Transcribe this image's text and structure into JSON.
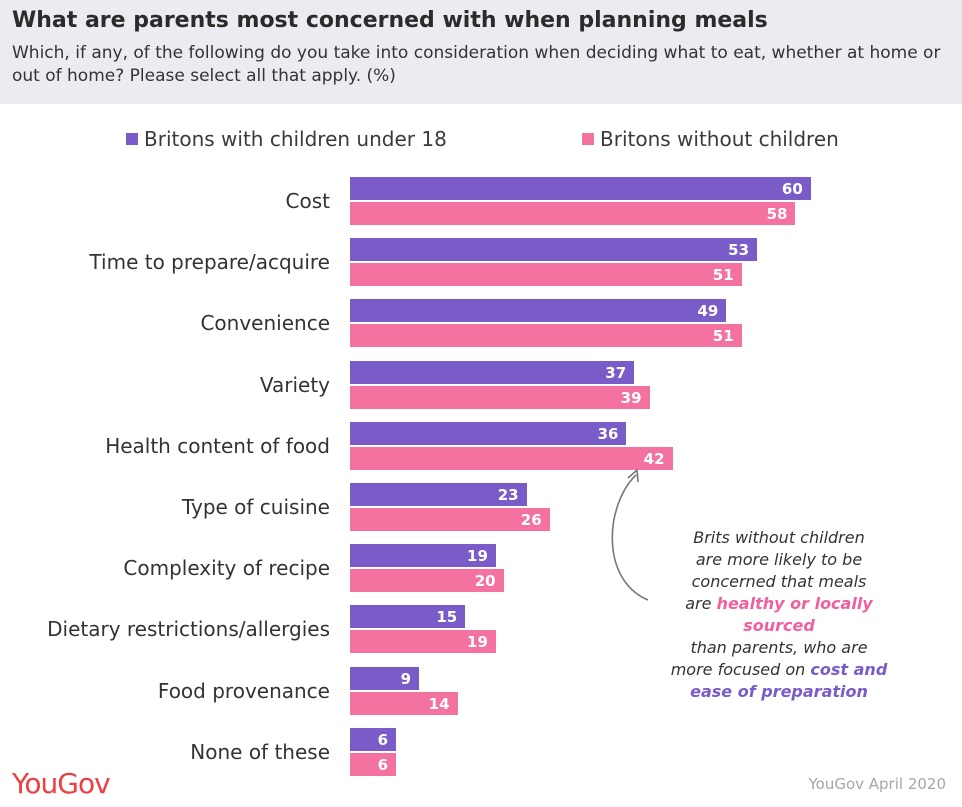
{
  "title": "What are parents most concerned with when planning meals",
  "subtitle": "Which, if any, of the following do you take into consideration when deciding what to eat, whether at home or out of home? Please select all that apply. (%)",
  "colors": {
    "parents": "#7a5cc8",
    "non_parents": "#f3729f",
    "header_bg": "#ecebf1",
    "logo": "#ef3e43"
  },
  "chart_data": {
    "type": "bar",
    "orientation": "horizontal",
    "categories": [
      "Cost",
      "Time to prepare/acquire",
      "Convenience",
      "Variety",
      "Health content of food",
      "Type of cuisine",
      "Complexity of recipe",
      "Dietary restrictions/allergies",
      "Food provenance",
      "None of these"
    ],
    "series": [
      {
        "name": "Britons with children under 18",
        "values": [
          60,
          53,
          49,
          37,
          36,
          23,
          19,
          15,
          9,
          6
        ]
      },
      {
        "name": "Britons without children",
        "values": [
          58,
          51,
          51,
          39,
          42,
          26,
          20,
          19,
          14,
          6
        ]
      }
    ],
    "legend": "top",
    "grid": false
  },
  "annotation": {
    "line1": "Brits without children",
    "line2": "are more likely to be",
    "line3": "concerned that meals",
    "line4_prefix": "are ",
    "line4_highlight": "healthy or locally sourced",
    "line5": "than parents, who are",
    "line6_prefix": "more focused on ",
    "line6_highlight": "cost and",
    "line7_highlight": "ease of preparation"
  },
  "logo_text": "YouGov",
  "source": "YouGov April 2020"
}
